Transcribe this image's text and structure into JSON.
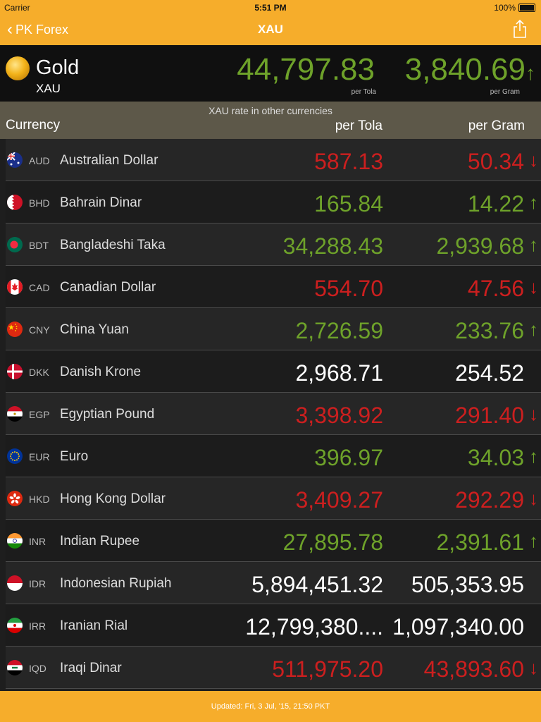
{
  "status_bar": {
    "carrier": "Carrier",
    "time": "5:51 PM",
    "battery": "100%"
  },
  "nav": {
    "back_label": "PK Forex",
    "title": "XAU"
  },
  "gold": {
    "name": "Gold",
    "code": "XAU",
    "per_tola": "44,797.83",
    "per_tola_label": "per Tola",
    "per_gram": "3,840.69",
    "per_gram_label": "per Gram",
    "trend": "up"
  },
  "table_header": {
    "subtitle": "XAU rate in other currencies",
    "currency": "Currency",
    "per_tola": "per Tola",
    "per_gram": "per Gram"
  },
  "rows": [
    {
      "code": "AUD",
      "name": "Australian Dollar",
      "tola": "587.13",
      "gram": "50.34",
      "trend": "down",
      "flag": "australia-flag-icon"
    },
    {
      "code": "BHD",
      "name": "Bahrain Dinar",
      "tola": "165.84",
      "gram": "14.22",
      "trend": "up",
      "flag": "bahrain-flag-icon"
    },
    {
      "code": "BDT",
      "name": "Bangladeshi Taka",
      "tola": "34,288.43",
      "gram": "2,939.68",
      "trend": "up",
      "flag": "bangladesh-flag-icon"
    },
    {
      "code": "CAD",
      "name": "Canadian Dollar",
      "tola": "554.70",
      "gram": "47.56",
      "trend": "down",
      "flag": "canada-flag-icon"
    },
    {
      "code": "CNY",
      "name": "China Yuan",
      "tola": "2,726.59",
      "gram": "233.76",
      "trend": "up",
      "flag": "china-flag-icon"
    },
    {
      "code": "DKK",
      "name": "Danish Krone",
      "tola": "2,968.71",
      "gram": "254.52",
      "trend": "neutral",
      "flag": "denmark-flag-icon"
    },
    {
      "code": "EGP",
      "name": "Egyptian Pound",
      "tola": "3,398.92",
      "gram": "291.40",
      "trend": "down",
      "flag": "egypt-flag-icon"
    },
    {
      "code": "EUR",
      "name": "Euro",
      "tola": "396.97",
      "gram": "34.03",
      "trend": "up",
      "flag": "eu-flag-icon"
    },
    {
      "code": "HKD",
      "name": "Hong Kong Dollar",
      "tola": "3,409.27",
      "gram": "292.29",
      "trend": "down",
      "flag": "hong-kong-flag-icon"
    },
    {
      "code": "INR",
      "name": "Indian Rupee",
      "tola": "27,895.78",
      "gram": "2,391.61",
      "trend": "up",
      "flag": "india-flag-icon"
    },
    {
      "code": "IDR",
      "name": "Indonesian Rupiah",
      "tola": "5,894,451.32",
      "gram": "505,353.95",
      "trend": "neutral",
      "flag": "indonesia-flag-icon"
    },
    {
      "code": "IRR",
      "name": "Iranian Rial",
      "tola": "12,799,380....",
      "gram": "1,097,340.00",
      "trend": "neutral",
      "flag": "iran-flag-icon"
    },
    {
      "code": "IQD",
      "name": "Iraqi Dinar",
      "tola": "511,975.20",
      "gram": "43,893.60",
      "trend": "down",
      "flag": "iraq-flag-icon"
    }
  ],
  "colors": {
    "accent": "#f6ad2b",
    "up": "#6ea22a",
    "down": "#cc1f1f",
    "header_band": "#5d5849"
  },
  "footer": {
    "updated": "Updated: Fri, 3 Jul, '15, 21:50 PKT"
  }
}
